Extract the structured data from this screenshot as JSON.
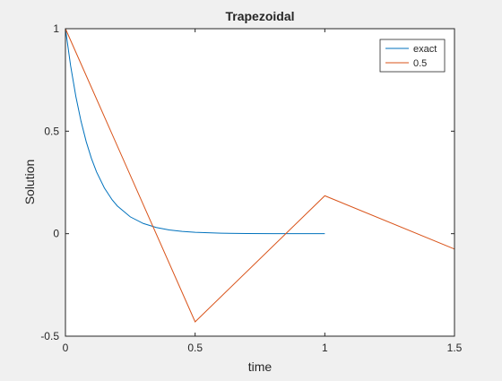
{
  "chart_data": {
    "type": "line",
    "title": "Trapezoidal",
    "xlabel": "time",
    "ylabel": "Solution",
    "xlim": [
      0,
      1.5
    ],
    "ylim": [
      -0.5,
      1
    ],
    "xticks": [
      0,
      0.5,
      1,
      1.5
    ],
    "xtick_labels": [
      "0",
      "0.5",
      "1",
      "1.5"
    ],
    "yticks": [
      -0.5,
      0,
      0.5,
      1
    ],
    "ytick_labels": [
      "-0.5",
      "0",
      "0.5",
      "1"
    ],
    "grid": false,
    "legend_position": "top-right",
    "series": [
      {
        "name": "exact",
        "color": "#0072BD",
        "x": [
          0,
          0.02,
          0.04,
          0.06,
          0.08,
          0.1,
          0.12,
          0.15,
          0.18,
          0.2,
          0.25,
          0.3,
          0.35,
          0.4,
          0.45,
          0.5,
          0.6,
          0.7,
          0.8,
          0.9,
          1.0
        ],
        "y": [
          1,
          0.8187,
          0.6703,
          0.5488,
          0.4493,
          0.3679,
          0.3012,
          0.2231,
          0.1653,
          0.1353,
          0.0821,
          0.0498,
          0.0302,
          0.0183,
          0.0111,
          0.0067,
          0.0025,
          0.0009,
          0.0003,
          0.0001,
          0.0
        ]
      },
      {
        "name": "0.5",
        "color": "#D95319",
        "x": [
          0,
          0.5,
          1,
          1.5
        ],
        "y": [
          1,
          -0.43,
          0.185,
          -0.075
        ]
      }
    ]
  }
}
